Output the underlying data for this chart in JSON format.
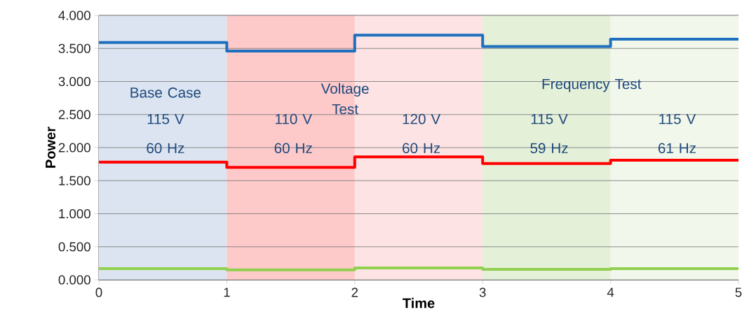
{
  "chart_data": {
    "type": "step",
    "xlabel": "Time",
    "ylabel": "Power",
    "x": [
      0,
      1,
      2,
      3,
      4,
      5
    ],
    "series": [
      {
        "color": "#1f6fbf",
        "values": [
          3.59,
          3.46,
          3.7,
          3.53,
          3.64,
          3.64
        ]
      },
      {
        "color": "#ff0000",
        "values": [
          1.78,
          1.7,
          1.86,
          1.76,
          1.81,
          1.81
        ]
      },
      {
        "color": "#92d050",
        "values": [
          0.17,
          0.15,
          0.18,
          0.16,
          0.17,
          0.17
        ]
      }
    ],
    "xlim": [
      0,
      5
    ],
    "ylim": [
      0,
      4
    ],
    "xticks": [
      0,
      1,
      2,
      3,
      4,
      5
    ],
    "yticks": [
      {
        "value": 0,
        "label": "0.000"
      },
      {
        "value": 0.5,
        "label": "0.500"
      },
      {
        "value": 1,
        "label": "1.000"
      },
      {
        "value": 1.5,
        "label": "1.500"
      },
      {
        "value": 2,
        "label": "2.000"
      },
      {
        "value": 2.5,
        "label": "2.500"
      },
      {
        "value": 3,
        "label": "3.000"
      },
      {
        "value": 3.5,
        "label": "3.500"
      },
      {
        "value": 4,
        "label": "4.000"
      }
    ],
    "grid": "y",
    "marker": "none",
    "line_style": "solid",
    "bands": [
      {
        "axis": "x",
        "from": 0,
        "to": 1,
        "color": "#dbe4f0"
      },
      {
        "axis": "x",
        "from": 1,
        "to": 2,
        "color": "#fdc9c9"
      },
      {
        "axis": "x",
        "from": 2,
        "to": 3,
        "color": "#fde3e3"
      },
      {
        "axis": "x",
        "from": 3,
        "to": 4,
        "color": "#e4f0d8"
      },
      {
        "axis": "x",
        "from": 4,
        "to": 5,
        "color": "#f1f7ea"
      }
    ],
    "annotations": [
      "Base Case",
      "115 V",
      "60 Hz",
      "Voltage Test",
      "110 V",
      "60 Hz",
      "120 V",
      "60 Hz",
      "Frequency Test",
      "115 V",
      "59 Hz",
      "115 V",
      "61 Hz"
    ]
  }
}
